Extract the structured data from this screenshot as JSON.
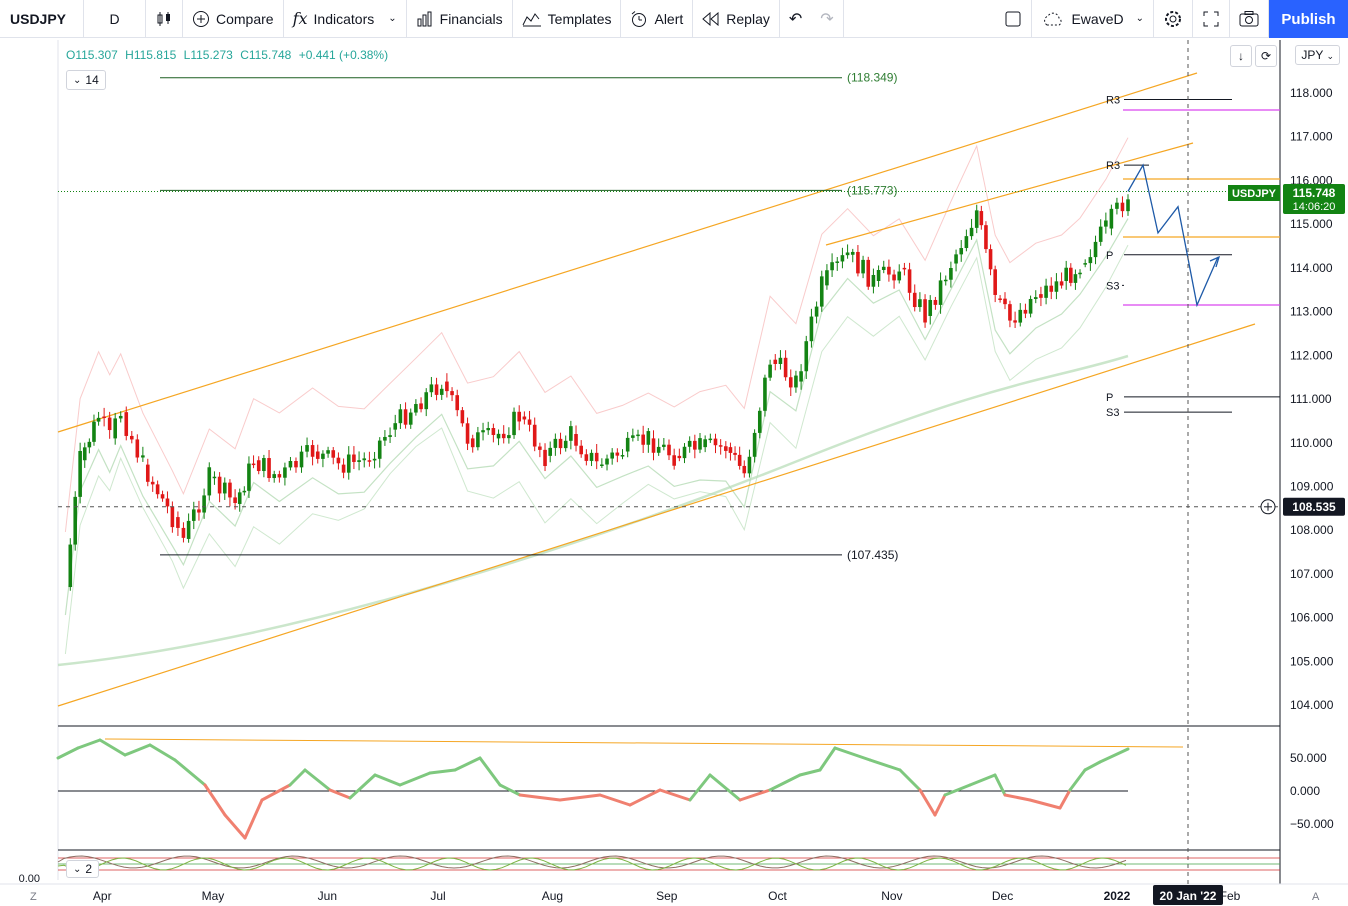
{
  "toolbar": {
    "symbol": "USDJPY",
    "interval": "D",
    "compare": "Compare",
    "indicators": "Indicators",
    "financials": "Financials",
    "templates": "Templates",
    "alert": "Alert",
    "replay": "Replay",
    "layout_name": "EwaveD",
    "publish": "Publish"
  },
  "legend": {
    "open": "O115.307",
    "high": "H115.815",
    "low": "L115.273",
    "close": "C115.748",
    "change": "+0.441 (+0.38%)",
    "rsi_period": "14",
    "osc_period": "2"
  },
  "currency": "JPY",
  "last_price": {
    "symbol": "USDJPY",
    "price": "115.748",
    "countdown": "14:06:20"
  },
  "crosshair": {
    "price": "108.535",
    "date": "20 Jan '22"
  },
  "colors": {
    "up": "#138313",
    "down": "#e01818",
    "channel": "#f5a623",
    "pivot_box": "#d946ef",
    "forecast": "#1e5aa8",
    "rsi_up": "#7ec87e",
    "rsi_down": "#f08070",
    "badge": "#138313"
  },
  "chart_data": {
    "type": "candlestick",
    "symbol": "USDJPY",
    "timeframe": "D",
    "y_axis": {
      "min": 103.5,
      "max": 119,
      "ticks": [
        "104.000",
        "105.000",
        "106.000",
        "107.000",
        "108.000",
        "109.000",
        "110.000",
        "111.000",
        "112.000",
        "113.000",
        "114.000",
        "115.000",
        "116.000",
        "117.000",
        "118.000"
      ]
    },
    "x_axis": {
      "ticks": [
        "Apr",
        "May",
        "Jun",
        "Jul",
        "Aug",
        "Sep",
        "Oct",
        "Nov",
        "Dec",
        "2022"
      ],
      "extra_tick": "Feb"
    },
    "price_levels": [
      {
        "label": "(118.349)",
        "value": 118.349
      },
      {
        "label": "(115.773)",
        "value": 115.773
      },
      {
        "label": "(107.435)",
        "value": 107.435
      }
    ],
    "pivots": [
      {
        "label": "R3",
        "value": 117.85
      },
      {
        "label": "R3",
        "value": 116.35
      },
      {
        "label": "P",
        "value": 114.3
      },
      {
        "label": "S3",
        "value": 113.6
      },
      {
        "label": "P",
        "value": 111.05
      },
      {
        "label": "S3",
        "value": 110.7
      }
    ],
    "candle_path": [
      {
        "date": "2021-03-22",
        "value": 106.7
      },
      {
        "date": "2021-03-26",
        "value": 109.6
      },
      {
        "date": "2021-03-31",
        "value": 110.6
      },
      {
        "date": "2021-04-03",
        "value": 110.1
      },
      {
        "date": "2021-04-06",
        "value": 110.7
      },
      {
        "date": "2021-04-12",
        "value": 109.5
      },
      {
        "date": "2021-04-20",
        "value": 108.3
      },
      {
        "date": "2021-04-23",
        "value": 107.8
      },
      {
        "date": "2021-04-30",
        "value": 109.2
      },
      {
        "date": "2021-05-07",
        "value": 108.6
      },
      {
        "date": "2021-05-12",
        "value": 109.6
      },
      {
        "date": "2021-05-19",
        "value": 109.2
      },
      {
        "date": "2021-05-28",
        "value": 109.8
      },
      {
        "date": "2021-06-04",
        "value": 109.5
      },
      {
        "date": "2021-06-11",
        "value": 109.6
      },
      {
        "date": "2021-06-18",
        "value": 110.3
      },
      {
        "date": "2021-06-25",
        "value": 110.9
      },
      {
        "date": "2021-07-02",
        "value": 111.4
      },
      {
        "date": "2021-07-09",
        "value": 110.1
      },
      {
        "date": "2021-07-16",
        "value": 110.1
      },
      {
        "date": "2021-07-23",
        "value": 110.6
      },
      {
        "date": "2021-07-30",
        "value": 109.7
      },
      {
        "date": "2021-08-06",
        "value": 110.2
      },
      {
        "date": "2021-08-13",
        "value": 109.5
      },
      {
        "date": "2021-08-20",
        "value": 109.8
      },
      {
        "date": "2021-08-27",
        "value": 110.1
      },
      {
        "date": "2021-09-03",
        "value": 109.7
      },
      {
        "date": "2021-09-10",
        "value": 109.9
      },
      {
        "date": "2021-09-17",
        "value": 109.9
      },
      {
        "date": "2021-09-22",
        "value": 109.3
      },
      {
        "date": "2021-09-29",
        "value": 111.9
      },
      {
        "date": "2021-10-06",
        "value": 111.4
      },
      {
        "date": "2021-10-13",
        "value": 113.6
      },
      {
        "date": "2021-10-20",
        "value": 114.3
      },
      {
        "date": "2021-10-27",
        "value": 113.7
      },
      {
        "date": "2021-11-03",
        "value": 114.0
      },
      {
        "date": "2021-11-10",
        "value": 112.9
      },
      {
        "date": "2021-11-17",
        "value": 114.1
      },
      {
        "date": "2021-11-24",
        "value": 115.3
      },
      {
        "date": "2021-11-29",
        "value": 113.3
      },
      {
        "date": "2021-12-03",
        "value": 112.8
      },
      {
        "date": "2021-12-10",
        "value": 113.4
      },
      {
        "date": "2021-12-17",
        "value": 113.7
      },
      {
        "date": "2021-12-22",
        "value": 114.1
      },
      {
        "date": "2021-12-29",
        "value": 114.9
      },
      {
        "date": "2022-01-04",
        "value": 115.7
      }
    ],
    "forecast_path": [
      115.75,
      116.35,
      114.8,
      115.4,
      113.15,
      114.25
    ],
    "oscillator": {
      "ticks": [
        "50.000",
        "0.000",
        "−50.000"
      ]
    },
    "lower_pane": {
      "tick": "0.00"
    }
  }
}
